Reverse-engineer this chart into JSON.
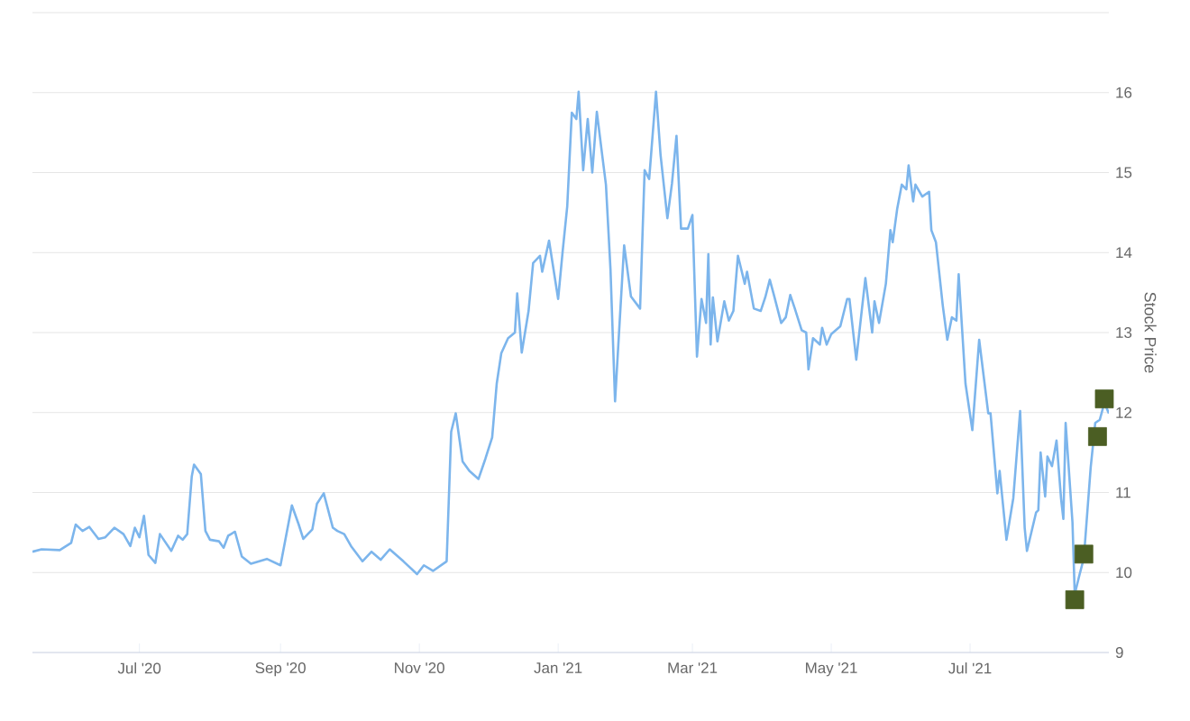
{
  "chart_data": {
    "type": "line",
    "y2label": "Stock Price",
    "grid": "y",
    "xlim": [
      "2020-05-15",
      "2021-08-31"
    ],
    "xticks": [
      {
        "value": "2020-07-01",
        "label": "Jul '20"
      },
      {
        "value": "2020-09-01",
        "label": "Sep '20"
      },
      {
        "value": "2020-11-01",
        "label": "Nov '20"
      },
      {
        "value": "2021-01-01",
        "label": "Jan '21"
      },
      {
        "value": "2021-03-01",
        "label": "Mar '21"
      },
      {
        "value": "2021-05-01",
        "label": "May '21"
      },
      {
        "value": "2021-07-01",
        "label": "Jul '21"
      }
    ],
    "y2lim": [
      9,
      17
    ],
    "y2ticks": [
      9,
      10,
      11,
      12,
      13,
      14,
      15,
      16,
      {
        "value": 17,
        "label": null
      }
    ],
    "series": [
      {
        "axis": "y2",
        "color": "#7cb5ec",
        "marker": "none",
        "x": [
          "2020-05-15",
          "2020-05-19",
          "2020-05-27",
          "2020-06-01",
          "2020-06-03",
          "2020-06-06",
          "2020-06-09",
          "2020-06-13",
          "2020-06-16",
          "2020-06-20",
          "2020-06-24",
          "2020-06-27",
          "2020-06-29",
          "2020-07-01",
          "2020-07-03",
          "2020-07-05",
          "2020-07-08",
          "2020-07-10",
          "2020-07-15",
          "2020-07-18",
          "2020-07-20",
          "2020-07-22",
          "2020-07-24",
          "2020-07-25",
          "2020-07-28",
          "2020-07-30",
          "2020-08-01",
          "2020-08-05",
          "2020-08-07",
          "2020-08-09",
          "2020-08-12",
          "2020-08-15",
          "2020-08-19",
          "2020-08-26",
          "2020-09-01",
          "2020-09-06",
          "2020-09-09",
          "2020-09-11",
          "2020-09-15",
          "2020-09-17",
          "2020-09-20",
          "2020-09-24",
          "2020-09-26",
          "2020-09-29",
          "2020-10-02",
          "2020-10-07",
          "2020-10-11",
          "2020-10-15",
          "2020-10-19",
          "2020-10-25",
          "2020-10-31",
          "2020-11-03",
          "2020-11-07",
          "2020-11-13",
          "2020-11-15",
          "2020-11-17",
          "2020-11-20",
          "2020-11-23",
          "2020-11-27",
          "2020-11-30",
          "2020-12-03",
          "2020-12-05",
          "2020-12-07",
          "2020-12-10",
          "2020-12-13",
          "2020-12-14",
          "2020-12-16",
          "2020-12-19",
          "2020-12-21",
          "2020-12-24",
          "2020-12-25",
          "2020-12-28",
          "2021-01-01",
          "2021-01-03",
          "2021-01-05",
          "2021-01-07",
          "2021-01-09",
          "2021-01-10",
          "2021-01-12",
          "2021-01-14",
          "2021-01-16",
          "2021-01-18",
          "2021-01-20",
          "2021-01-22",
          "2021-01-24",
          "2021-01-26",
          "2021-01-28",
          "2021-01-30",
          "2021-02-02",
          "2021-02-06",
          "2021-02-08",
          "2021-02-10",
          "2021-02-13",
          "2021-02-15",
          "2021-02-18",
          "2021-02-20",
          "2021-02-22",
          "2021-02-24",
          "2021-02-27",
          "2021-03-01",
          "2021-03-03",
          "2021-03-05",
          "2021-03-07",
          "2021-03-08",
          "2021-03-09",
          "2021-03-10",
          "2021-03-12",
          "2021-03-15",
          "2021-03-17",
          "2021-03-19",
          "2021-03-21",
          "2021-03-24",
          "2021-03-25",
          "2021-03-28",
          "2021-03-31",
          "2021-04-02",
          "2021-04-04",
          "2021-04-06",
          "2021-04-09",
          "2021-04-11",
          "2021-04-13",
          "2021-04-15",
          "2021-04-18",
          "2021-04-20",
          "2021-04-21",
          "2021-04-23",
          "2021-04-26",
          "2021-04-27",
          "2021-04-29",
          "2021-05-01",
          "2021-05-05",
          "2021-05-08",
          "2021-05-09",
          "2021-05-12",
          "2021-05-16",
          "2021-05-19",
          "2021-05-20",
          "2021-05-22",
          "2021-05-25",
          "2021-05-27",
          "2021-05-28",
          "2021-05-30",
          "2021-06-01",
          "2021-06-03",
          "2021-06-04",
          "2021-06-06",
          "2021-06-07",
          "2021-06-10",
          "2021-06-13",
          "2021-06-14",
          "2021-06-16",
          "2021-06-19",
          "2021-06-21",
          "2021-06-23",
          "2021-06-25",
          "2021-06-26",
          "2021-06-29",
          "2021-07-02",
          "2021-07-05",
          "2021-07-09",
          "2021-07-10",
          "2021-07-13",
          "2021-07-14",
          "2021-07-17",
          "2021-07-20",
          "2021-07-23",
          "2021-07-25",
          "2021-07-26",
          "2021-07-30",
          "2021-07-31",
          "2021-08-01",
          "2021-08-03",
          "2021-08-04",
          "2021-08-06",
          "2021-08-08",
          "2021-08-10",
          "2021-08-11",
          "2021-08-12",
          "2021-08-15",
          "2021-08-16",
          "2021-08-18",
          "2021-08-20",
          "2021-08-23",
          "2021-08-25",
          "2021-08-27",
          "2021-08-29",
          "2021-08-31"
        ],
        "values": [
          10.26,
          10.29,
          10.28,
          10.37,
          10.6,
          10.52,
          10.57,
          10.42,
          10.44,
          10.56,
          10.48,
          10.33,
          10.56,
          10.44,
          10.71,
          10.22,
          10.12,
          10.48,
          10.27,
          10.46,
          10.41,
          10.48,
          11.2,
          11.35,
          11.23,
          10.52,
          10.41,
          10.39,
          10.31,
          10.46,
          10.51,
          10.2,
          10.11,
          10.17,
          10.09,
          10.84,
          10.6,
          10.42,
          10.54,
          10.86,
          10.99,
          10.56,
          10.52,
          10.48,
          10.33,
          10.14,
          10.26,
          10.16,
          10.29,
          10.14,
          9.98,
          10.09,
          10.02,
          10.14,
          11.76,
          11.99,
          11.39,
          11.27,
          11.17,
          11.42,
          11.69,
          12.36,
          12.74,
          12.93,
          13.0,
          13.49,
          12.75,
          13.27,
          13.87,
          13.96,
          13.76,
          14.15,
          13.42,
          14.02,
          14.58,
          15.75,
          15.67,
          16.01,
          15.03,
          15.67,
          15.0,
          15.76,
          15.3,
          14.85,
          13.79,
          12.14,
          13.12,
          14.09,
          13.45,
          13.3,
          15.03,
          14.92,
          16.01,
          15.22,
          14.43,
          14.86,
          15.46,
          14.3,
          14.3,
          14.47,
          12.7,
          13.42,
          13.12,
          13.98,
          12.85,
          13.44,
          12.89,
          13.39,
          13.15,
          13.27,
          13.96,
          13.61,
          13.76,
          13.3,
          13.27,
          13.44,
          13.66,
          13.45,
          13.12,
          13.19,
          13.47,
          13.3,
          13.03,
          13.0,
          12.54,
          12.93,
          12.85,
          13.06,
          12.85,
          12.98,
          13.08,
          13.42,
          13.42,
          12.66,
          13.68,
          13.0,
          13.39,
          13.12,
          13.61,
          14.28,
          14.13,
          14.55,
          14.85,
          14.79,
          15.09,
          14.64,
          14.85,
          14.7,
          14.76,
          14.28,
          14.13,
          13.34,
          12.91,
          13.19,
          13.15,
          13.73,
          12.36,
          11.78,
          12.91,
          11.99,
          11.99,
          10.99,
          11.27,
          10.41,
          10.93,
          12.02,
          10.56,
          10.27,
          10.75,
          10.78,
          11.5,
          10.95,
          11.45,
          11.33,
          11.65,
          10.92,
          10.67,
          11.87,
          10.63,
          9.73,
          9.96,
          10.18,
          11.31,
          11.87,
          11.91,
          12.12,
          11.99
        ]
      },
      {
        "type": "scatter",
        "axis": "y2",
        "color": "#4b5e23",
        "marker": "square",
        "x": [
          "2021-08-16",
          "2021-08-20",
          "2021-08-26",
          "2021-08-29"
        ],
        "values": [
          9.66,
          10.23,
          11.7,
          12.17
        ]
      }
    ]
  }
}
